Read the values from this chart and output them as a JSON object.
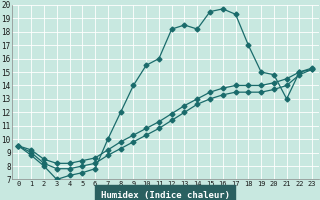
{
  "xlabel": "Humidex (Indice chaleur)",
  "xlim": [
    -0.5,
    23.5
  ],
  "ylim": [
    7,
    20
  ],
  "xticks": [
    0,
    1,
    2,
    3,
    4,
    5,
    6,
    7,
    8,
    9,
    10,
    11,
    12,
    13,
    14,
    15,
    16,
    17,
    18,
    19,
    20,
    21,
    22,
    23
  ],
  "yticks": [
    7,
    8,
    9,
    10,
    11,
    12,
    13,
    14,
    15,
    16,
    17,
    18,
    19,
    20
  ],
  "bg_color": "#c8e8e0",
  "line_color": "#1a6b6b",
  "grid_color": "#b0d8d0",
  "xaxis_bg": "#2a6060",
  "line1_x": [
    0,
    1,
    2,
    3,
    4,
    5,
    6,
    7,
    8,
    9,
    10,
    11,
    12,
    13,
    14,
    15,
    16,
    17,
    18,
    19,
    20,
    21,
    22,
    23
  ],
  "line1_y": [
    9.5,
    8.8,
    8.0,
    7.0,
    7.3,
    7.5,
    7.8,
    10.0,
    12.0,
    14.0,
    15.5,
    16.0,
    18.2,
    18.5,
    18.2,
    19.5,
    19.7,
    19.3,
    17.0,
    15.0,
    14.8,
    13.0,
    15.0,
    15.2
  ],
  "line2_x": [
    0,
    1,
    2,
    3,
    4,
    5,
    6,
    7,
    8,
    9,
    10,
    11,
    12,
    13,
    14,
    15,
    16,
    17,
    18,
    19,
    20,
    21,
    22,
    23
  ],
  "line2_y": [
    9.5,
    9.0,
    8.2,
    7.8,
    7.8,
    8.0,
    8.2,
    8.8,
    9.3,
    9.8,
    10.3,
    10.8,
    11.4,
    12.0,
    12.6,
    13.0,
    13.3,
    13.5,
    13.5,
    13.5,
    13.7,
    14.0,
    14.8,
    15.2
  ],
  "line3_x": [
    0,
    1,
    2,
    3,
    4,
    5,
    6,
    7,
    8,
    9,
    10,
    11,
    12,
    13,
    14,
    15,
    16,
    17,
    18,
    19,
    20,
    21,
    22,
    23
  ],
  "line3_y": [
    9.5,
    9.2,
    8.5,
    8.2,
    8.2,
    8.4,
    8.6,
    9.2,
    9.8,
    10.3,
    10.8,
    11.3,
    11.9,
    12.5,
    13.0,
    13.5,
    13.8,
    14.0,
    14.0,
    14.0,
    14.2,
    14.5,
    15.0,
    15.3
  ]
}
